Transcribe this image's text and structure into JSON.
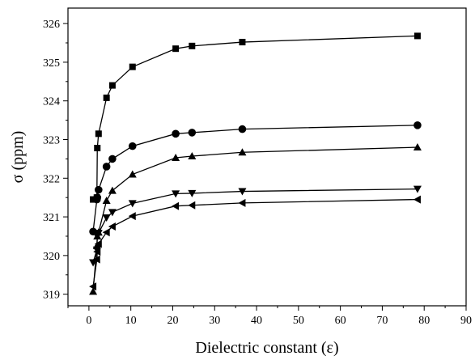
{
  "chart_data": {
    "type": "line",
    "xlabel": "Dielectric constant (ε)",
    "ylabel": "σ (ppm)",
    "xlim": [
      -5,
      90
    ],
    "ylim": [
      318.7,
      326.4
    ],
    "xticks": [
      0,
      10,
      20,
      30,
      40,
      50,
      60,
      70,
      80,
      90
    ],
    "yticks": [
      319,
      320,
      321,
      322,
      323,
      324,
      325,
      326
    ],
    "grid": false,
    "series": [
      {
        "marker": "square",
        "x": [
          1.0,
          1.9,
          2.0,
          2.3,
          4.2,
          5.6,
          10.4,
          20.7,
          24.6,
          36.6,
          78.4
        ],
        "y": [
          321.45,
          321.5,
          322.78,
          323.15,
          324.08,
          324.4,
          324.88,
          325.35,
          325.42,
          325.52,
          325.68
        ]
      },
      {
        "marker": "circle",
        "x": [
          1.0,
          1.9,
          2.0,
          2.3,
          4.2,
          5.6,
          10.4,
          20.7,
          24.6,
          36.6,
          78.4
        ],
        "y": [
          320.62,
          321.45,
          321.5,
          321.7,
          322.3,
          322.5,
          322.83,
          323.15,
          323.18,
          323.27,
          323.37
        ]
      },
      {
        "marker": "triangle-up",
        "x": [
          1.0,
          1.9,
          2.0,
          2.3,
          4.2,
          5.6,
          10.4,
          20.7,
          24.6,
          36.6,
          78.4
        ],
        "y": [
          319.07,
          320.25,
          320.5,
          320.6,
          321.42,
          321.68,
          322.1,
          322.53,
          322.57,
          322.67,
          322.8
        ]
      },
      {
        "marker": "triangle-down",
        "x": [
          1.0,
          1.9,
          2.0,
          2.3,
          4.2,
          5.6,
          10.4,
          20.7,
          24.6,
          36.6,
          78.4
        ],
        "y": [
          319.82,
          320.15,
          320.5,
          320.58,
          320.98,
          321.12,
          321.35,
          321.6,
          321.61,
          321.66,
          321.72
        ]
      },
      {
        "marker": "triangle-left",
        "x": [
          1.0,
          1.9,
          2.0,
          2.3,
          4.2,
          5.6,
          10.4,
          20.7,
          24.6,
          36.6,
          78.4
        ],
        "y": [
          319.2,
          319.9,
          320.1,
          320.3,
          320.6,
          320.75,
          321.02,
          321.28,
          321.3,
          321.36,
          321.45
        ]
      }
    ]
  }
}
